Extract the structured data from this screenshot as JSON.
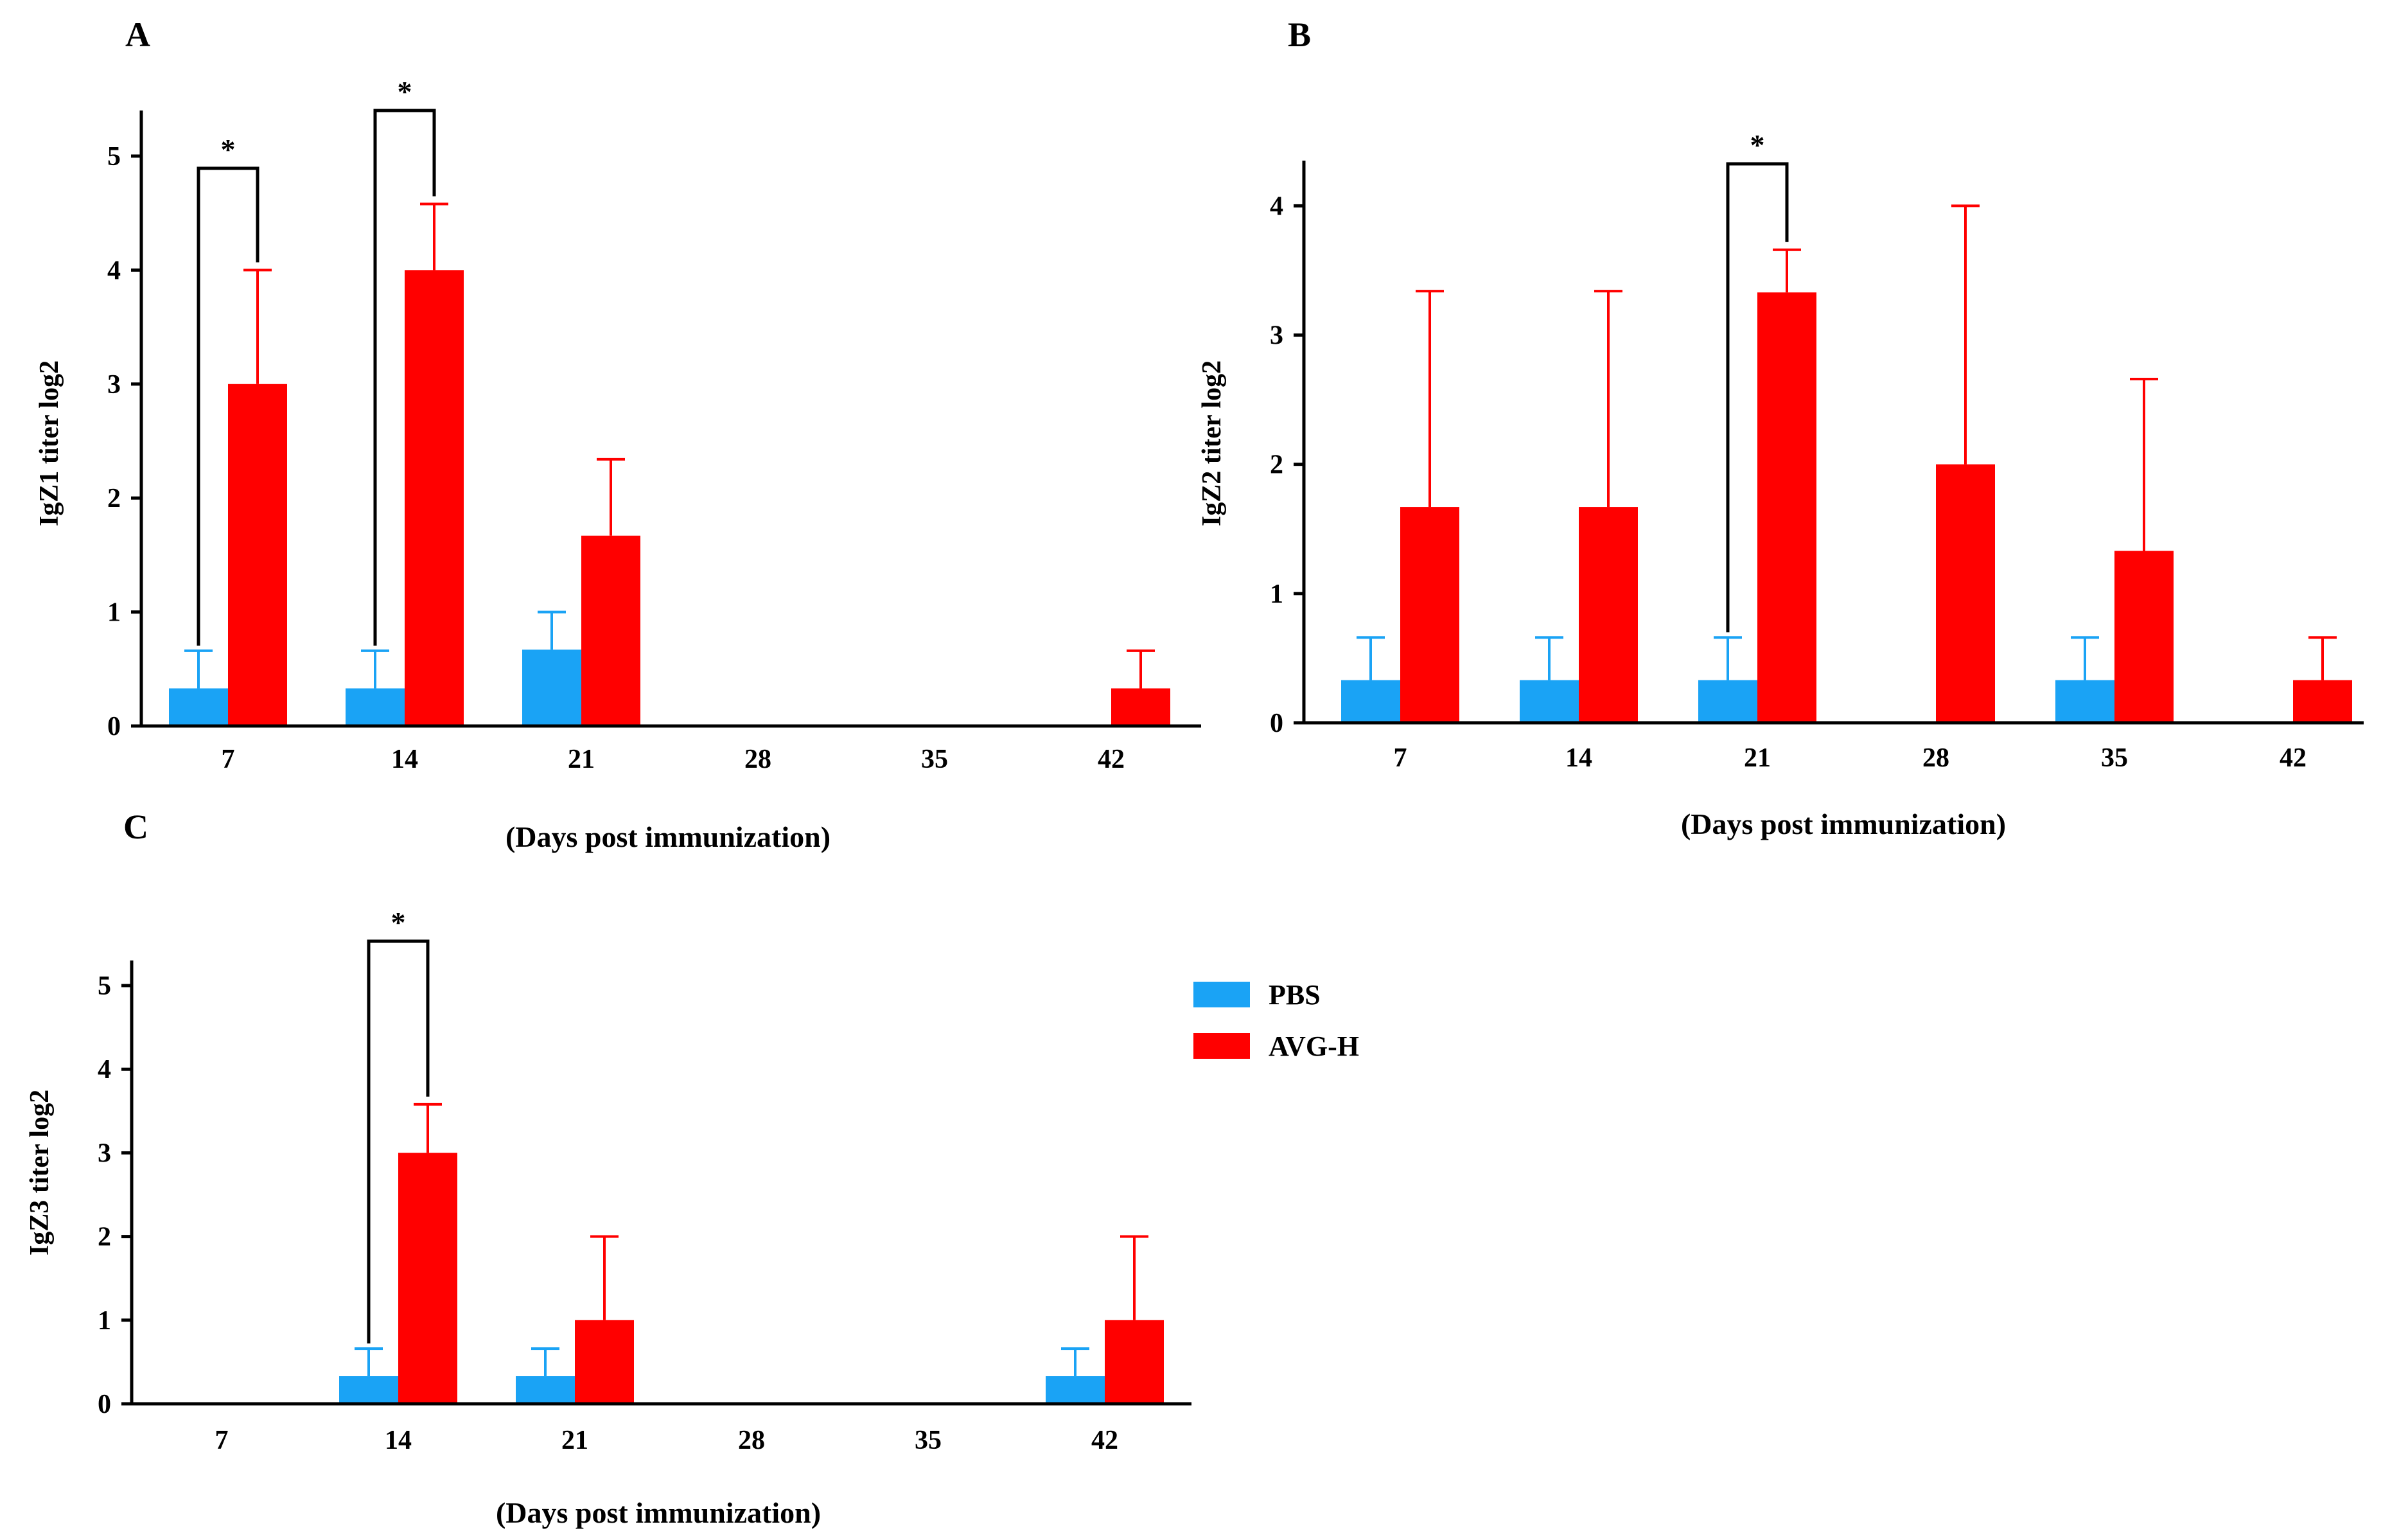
{
  "colors": {
    "pbs": "#1aa3f5",
    "avg": "#ff0000",
    "axis": "#000000"
  },
  "legend": {
    "items": [
      {
        "name": "PBS",
        "color": "#1aa3f5"
      },
      {
        "name": "AVG-H",
        "color": "#ff0000"
      }
    ],
    "placement": "right of panel C"
  },
  "chart_data": [
    {
      "panel": "A",
      "type": "bar",
      "ylabel": "IgZ1 titer log2",
      "xlabel": "(Days post immunization)",
      "categories": [
        "7",
        "14",
        "21",
        "28",
        "35",
        "42"
      ],
      "ylim": [
        0,
        5.4
      ],
      "yticks": [
        0,
        1,
        2,
        3,
        4,
        5
      ],
      "series": [
        {
          "name": "PBS",
          "values": [
            0.33,
            0.33,
            0.67,
            0,
            0,
            0
          ],
          "errors": [
            0.33,
            0.33,
            0.33,
            0,
            0,
            0
          ]
        },
        {
          "name": "AVG-H",
          "values": [
            3.0,
            4.0,
            1.67,
            0,
            0,
            0.33
          ],
          "errors": [
            1.0,
            0.58,
            0.67,
            0,
            0,
            0.33
          ]
        }
      ],
      "significance": [
        {
          "category": "7",
          "label": "*"
        },
        {
          "category": "14",
          "label": "*"
        }
      ]
    },
    {
      "panel": "B",
      "type": "bar",
      "ylabel": "IgZ2 titer log2",
      "xlabel": "(Days post immunization)",
      "categories": [
        "7",
        "14",
        "21",
        "28",
        "35",
        "42"
      ],
      "ylim": [
        0,
        4.35
      ],
      "yticks": [
        0,
        1,
        2,
        3,
        4
      ],
      "series": [
        {
          "name": "PBS",
          "values": [
            0.33,
            0.33,
            0.33,
            0,
            0.33,
            0
          ],
          "errors": [
            0.33,
            0.33,
            0.33,
            0,
            0.33,
            0
          ]
        },
        {
          "name": "AVG-H",
          "values": [
            1.67,
            1.67,
            3.33,
            2.0,
            1.33,
            0.33
          ],
          "errors": [
            1.67,
            1.67,
            0.33,
            2.0,
            1.33,
            0.33
          ]
        }
      ],
      "significance": [
        {
          "category": "21",
          "label": "*"
        }
      ]
    },
    {
      "panel": "C",
      "type": "bar",
      "ylabel": "IgZ3 titer log2",
      "xlabel": "(Days post immunization)",
      "categories": [
        "7",
        "14",
        "21",
        "28",
        "35",
        "42"
      ],
      "ylim": [
        0,
        5.3
      ],
      "yticks": [
        0,
        1,
        2,
        3,
        4,
        5
      ],
      "series": [
        {
          "name": "PBS",
          "values": [
            0,
            0.33,
            0.33,
            0,
            0,
            0.33
          ],
          "errors": [
            0,
            0.33,
            0.33,
            0,
            0,
            0.33
          ]
        },
        {
          "name": "AVG-H",
          "values": [
            0,
            3.0,
            1.0,
            0,
            0,
            1.0
          ],
          "errors": [
            0,
            0.58,
            1.0,
            0,
            0,
            1.0
          ]
        }
      ],
      "significance": [
        {
          "category": "14",
          "label": "*"
        }
      ]
    }
  ]
}
